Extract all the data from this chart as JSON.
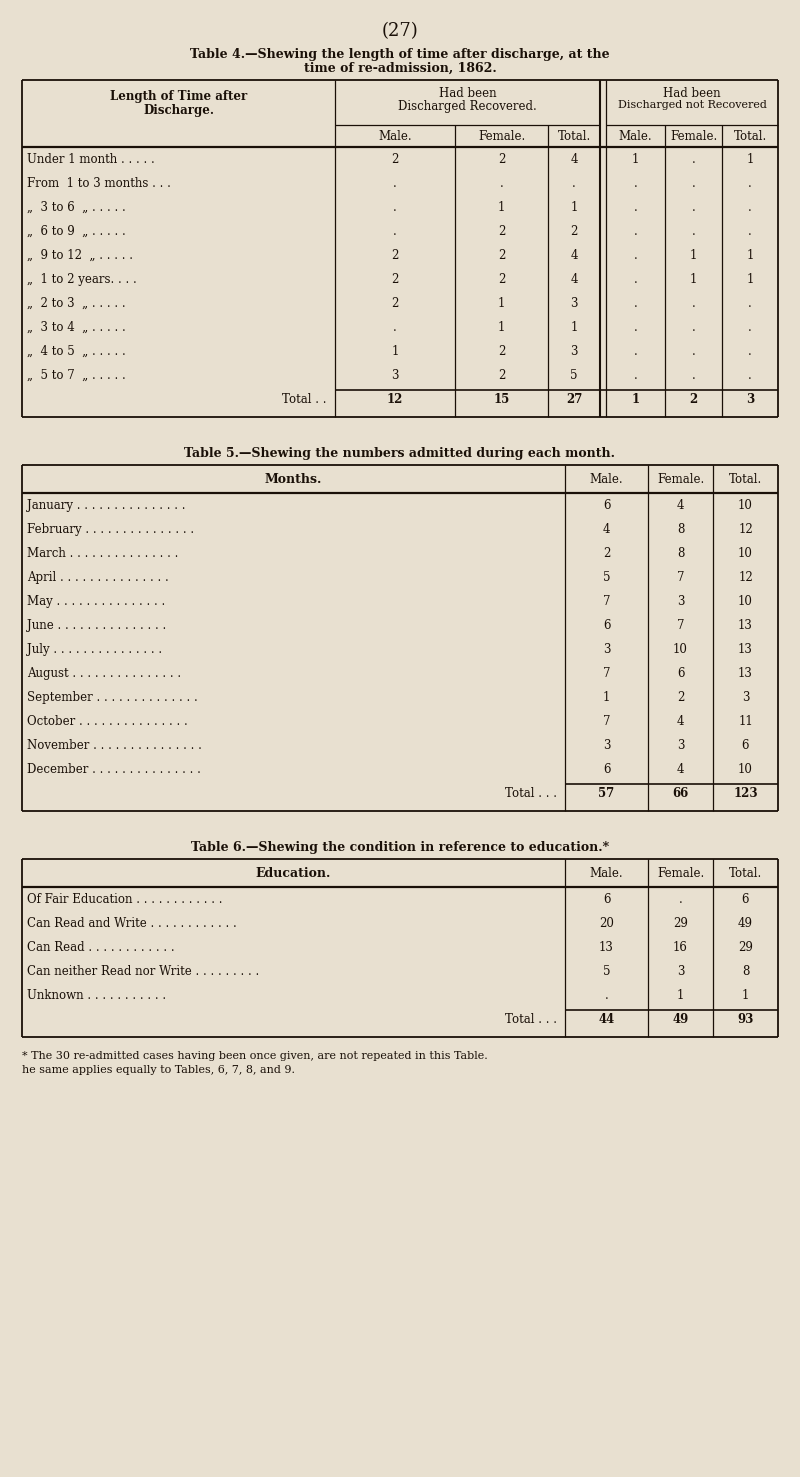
{
  "bg_color": "#e8e0d0",
  "text_color": "#1a1008",
  "page_number": "(27)",
  "table4": {
    "title_line1": "Table 4.—Shewing the length of time after discharge, at the",
    "title_line2": "time of re-admission, 1862.",
    "rows": [
      [
        "Under 1 month . . . . .",
        "2",
        "2",
        "4",
        "1",
        ".",
        "1"
      ],
      [
        "From  1 to 3 months . . .",
        ".",
        ".",
        ".",
        ".",
        ".",
        "."
      ],
      [
        "„  3 to 6  „ . . . . .",
        ".",
        "1",
        "1",
        ".",
        ".",
        "."
      ],
      [
        "„  6 to 9  „ . . . . .",
        ".",
        "2",
        "2",
        ".",
        ".",
        "."
      ],
      [
        "„  9 to 12  „ . . . . .",
        "2",
        "2",
        "4",
        ".",
        "1",
        "1"
      ],
      [
        "„  1 to 2 years. . . .",
        "2",
        "2",
        "4",
        ".",
        "1",
        "1"
      ],
      [
        "„  2 to 3  „ . . . . .",
        "2",
        "1",
        "3",
        ".",
        ".",
        "."
      ],
      [
        "„  3 to 4  „ . . . . .",
        ".",
        "1",
        "1",
        ".",
        ".",
        "."
      ],
      [
        "„  4 to 5  „ . . . . .",
        "1",
        "2",
        "3",
        ".",
        ".",
        "."
      ],
      [
        "„  5 to 7  „ . . . . .",
        "3",
        "2",
        "5",
        ".",
        ".",
        "."
      ],
      [
        "Total . .",
        "12",
        "15",
        "27",
        "1",
        "2",
        "3"
      ]
    ]
  },
  "table5": {
    "title": "Table 5.—Shewing the numbers admitted during each month.",
    "rows": [
      [
        "January . . . . . . . . . . . . . . .",
        "6",
        "4",
        "10"
      ],
      [
        "February . . . . . . . . . . . . . . .",
        "4",
        "8",
        "12"
      ],
      [
        "March . . . . . . . . . . . . . . .",
        "2",
        "8",
        "10"
      ],
      [
        "April . . . . . . . . . . . . . . .",
        "5",
        "7",
        "12"
      ],
      [
        "May . . . . . . . . . . . . . . .",
        "7",
        "3",
        "10"
      ],
      [
        "June . . . . . . . . . . . . . . .",
        "6",
        "7",
        "13"
      ],
      [
        "July . . . . . . . . . . . . . . .",
        "3",
        "10",
        "13"
      ],
      [
        "August . . . . . . . . . . . . . . .",
        "7",
        "6",
        "13"
      ],
      [
        "September . . . . . . . . . . . . . .",
        "1",
        "2",
        "3"
      ],
      [
        "October . . . . . . . . . . . . . . .",
        "7",
        "4",
        "11"
      ],
      [
        "November . . . . . . . . . . . . . . .",
        "3",
        "3",
        "6"
      ],
      [
        "December . . . . . . . . . . . . . . .",
        "6",
        "4",
        "10"
      ],
      [
        "Total . . .",
        "57",
        "66",
        "123"
      ]
    ]
  },
  "table6": {
    "title": "Table 6.—Shewing the condition in reference to education.*",
    "rows": [
      [
        "Of Fair Education . . . . . . . . . . . .",
        "6",
        ".",
        "6"
      ],
      [
        "Can Read and Write . . . . . . . . . . . .",
        "20",
        "29",
        "49"
      ],
      [
        "Can Read . . . . . . . . . . . .",
        "13",
        "16",
        "29"
      ],
      [
        "Can neither Read nor Write . . . . . . . . .",
        "5",
        "3",
        "8"
      ],
      [
        "Unknown . . . . . . . . . . .",
        ".",
        "1",
        "1"
      ],
      [
        "Total . . .",
        "44",
        "49",
        "93"
      ]
    ],
    "footnote_line1": "* The 30 re-admitted cases having been once given, are not repeated in this Table.",
    "footnote_line2": "he same applies equally to Tables, 6, 7, 8, and 9."
  }
}
